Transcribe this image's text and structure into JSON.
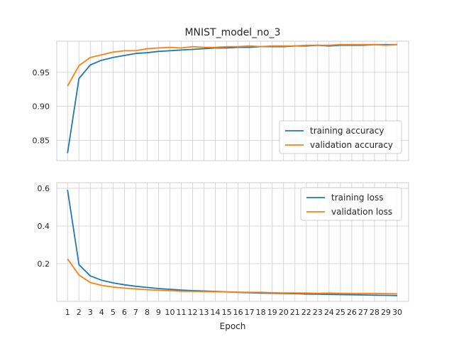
{
  "chart_data": [
    {
      "type": "line",
      "title": "MNIST_model_no_3",
      "xlabel": "",
      "ylabel": "",
      "x": [
        1,
        2,
        3,
        4,
        5,
        6,
        7,
        8,
        9,
        10,
        11,
        12,
        13,
        14,
        15,
        16,
        17,
        18,
        19,
        20,
        21,
        22,
        23,
        24,
        25,
        26,
        27,
        28,
        29,
        30
      ],
      "xlim": [
        0.05,
        31.0
      ],
      "ylim": [
        0.82,
        0.996
      ],
      "yticks": [
        0.85,
        0.9,
        0.95
      ],
      "ytick_labels": [
        "0.85",
        "0.90",
        "0.95"
      ],
      "grid": true,
      "legend": "bottom-right",
      "series": [
        {
          "name": "training accuracy",
          "color": "#1f77b4",
          "values": [
            0.831,
            0.941,
            0.961,
            0.968,
            0.972,
            0.975,
            0.978,
            0.979,
            0.981,
            0.982,
            0.983,
            0.984,
            0.985,
            0.986,
            0.986,
            0.987,
            0.987,
            0.988,
            0.988,
            0.988,
            0.989,
            0.989,
            0.99,
            0.989,
            0.99,
            0.99,
            0.99,
            0.991,
            0.991,
            0.991
          ]
        },
        {
          "name": "validation accuracy",
          "color": "#ff7f0e",
          "values": [
            0.93,
            0.96,
            0.972,
            0.976,
            0.98,
            0.982,
            0.982,
            0.985,
            0.986,
            0.987,
            0.986,
            0.988,
            0.987,
            0.987,
            0.988,
            0.988,
            0.989,
            0.988,
            0.989,
            0.989,
            0.989,
            0.99,
            0.99,
            0.99,
            0.991,
            0.991,
            0.991,
            0.991,
            0.99,
            0.991
          ]
        }
      ]
    },
    {
      "type": "line",
      "title": "",
      "xlabel": "Epoch",
      "ylabel": "",
      "x": [
        1,
        2,
        3,
        4,
        5,
        6,
        7,
        8,
        9,
        10,
        11,
        12,
        13,
        14,
        15,
        16,
        17,
        18,
        19,
        20,
        21,
        22,
        23,
        24,
        25,
        26,
        27,
        28,
        29,
        30
      ],
      "xlim": [
        0.05,
        31.0
      ],
      "ylim": [
        0.0,
        0.63
      ],
      "yticks": [
        0.2,
        0.4,
        0.6
      ],
      "ytick_labels": [
        "0.2",
        "0.4",
        "0.6"
      ],
      "xtick_labels": [
        "1",
        "2",
        "3",
        "4",
        "5",
        "6",
        "7",
        "8",
        "9",
        "10",
        "11",
        "12",
        "13",
        "14",
        "15",
        "16",
        "17",
        "18",
        "19",
        "20",
        "21",
        "22",
        "23",
        "24",
        "25",
        "26",
        "27",
        "28",
        "29",
        "30"
      ],
      "grid": true,
      "legend": "top-right",
      "series": [
        {
          "name": "training loss",
          "color": "#1f77b4",
          "values": [
            0.592,
            0.195,
            0.135,
            0.112,
            0.098,
            0.088,
            0.08,
            0.074,
            0.068,
            0.064,
            0.06,
            0.057,
            0.055,
            0.053,
            0.05,
            0.048,
            0.046,
            0.044,
            0.043,
            0.042,
            0.041,
            0.039,
            0.038,
            0.037,
            0.036,
            0.035,
            0.034,
            0.033,
            0.032,
            0.031
          ]
        },
        {
          "name": "validation loss",
          "color": "#ff7f0e",
          "values": [
            0.225,
            0.14,
            0.1,
            0.085,
            0.076,
            0.07,
            0.066,
            0.062,
            0.059,
            0.057,
            0.054,
            0.053,
            0.052,
            0.051,
            0.05,
            0.049,
            0.048,
            0.048,
            0.046,
            0.045,
            0.045,
            0.044,
            0.043,
            0.044,
            0.043,
            0.042,
            0.042,
            0.042,
            0.041,
            0.04
          ]
        }
      ]
    }
  ]
}
